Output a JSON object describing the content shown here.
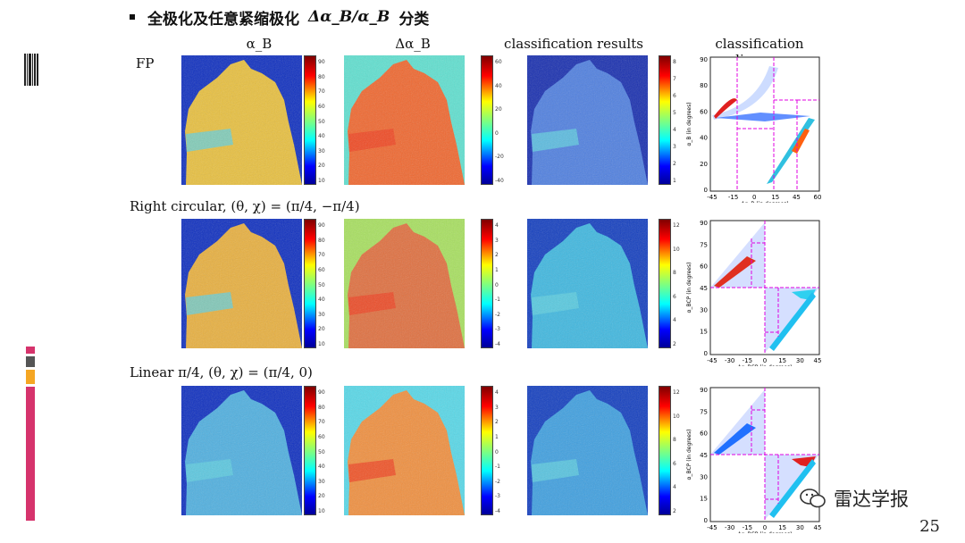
{
  "slide": {
    "title_prefix": "全极化及任意紧缩极化",
    "title_math": "Δα_B/α_B",
    "title_suffix": "分类",
    "page_number": "25",
    "logo_text": "雷达学报"
  },
  "columns": [
    "α_B",
    "Δα_B",
    "classification results",
    "classification diagram"
  ],
  "rows": [
    {
      "label": "FP",
      "cbars": [
        [
          "90",
          "80",
          "70",
          "60",
          "50",
          "40",
          "30",
          "20",
          "10"
        ],
        [
          "60",
          "40",
          "20",
          "0",
          "-20",
          "-40"
        ],
        [
          "8",
          "7",
          "6",
          "5",
          "4",
          "3",
          "2",
          "1"
        ]
      ],
      "diagram": {
        "ylabel": "α_B (in degrees)",
        "xlabel": "Δα_B (in degrees)",
        "yticks": [
          "90",
          "80",
          "60",
          "40",
          "20",
          "0"
        ],
        "xticks": [
          "-45",
          "-15",
          "0",
          "15",
          "45",
          "60"
        ]
      }
    },
    {
      "label": "Right circular, (θ,   χ) = (π/4,   −π/4)",
      "cbars": [
        [
          "90",
          "80",
          "70",
          "60",
          "50",
          "40",
          "30",
          "20",
          "10"
        ],
        [
          "4",
          "3",
          "2",
          "1",
          "0",
          "-1",
          "-2",
          "-3",
          "-4"
        ],
        [
          "12",
          "10",
          "8",
          "6",
          "4",
          "2"
        ]
      ],
      "diagram": {
        "ylabel": "α_BCP (in degrees)",
        "xlabel": "Δα_BCP (in degrees)",
        "yticks": [
          "90",
          "75",
          "60",
          "45",
          "30",
          "15",
          "0"
        ],
        "xticks": [
          "-45",
          "-30",
          "-15",
          "0",
          "15",
          "30",
          "45"
        ]
      }
    },
    {
      "label": "Linear π/4, (θ,   χ) = (π/4,   0)",
      "cbars": [
        [
          "90",
          "80",
          "70",
          "60",
          "50",
          "40",
          "30",
          "20",
          "10"
        ],
        [
          "4",
          "3",
          "2",
          "1",
          "0",
          "-1",
          "-2",
          "-3",
          "-4"
        ],
        [
          "12",
          "10",
          "8",
          "6",
          "4",
          "2"
        ]
      ],
      "diagram": {
        "ylabel": "α_BCP (in degrees)",
        "xlabel": "Δα_BCP (in degrees)",
        "yticks": [
          "90",
          "75",
          "60",
          "45",
          "30",
          "15",
          "0"
        ],
        "xticks": [
          "-45",
          "-30",
          "-15",
          "0",
          "15",
          "30",
          "45"
        ]
      }
    }
  ]
}
